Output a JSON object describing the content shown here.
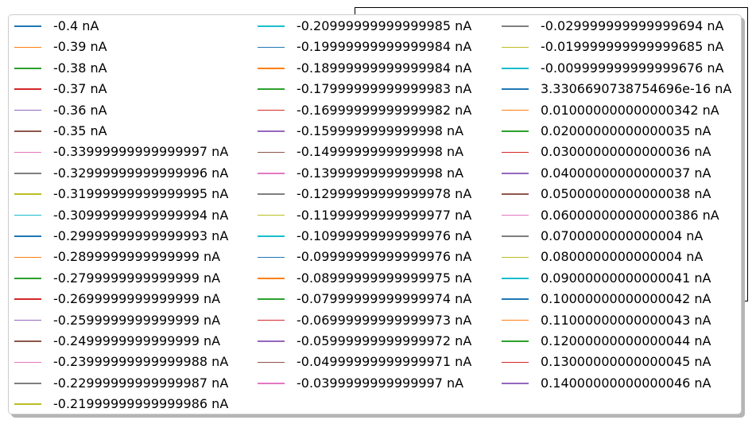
{
  "chart_data": {
    "type": "line",
    "title": "",
    "xlabel": "",
    "ylabel": "",
    "legend_placement": "upper-left",
    "grid": false,
    "series": [
      {
        "name": "-0.4 nA",
        "color": "#1f77b4"
      },
      {
        "name": "-0.39 nA",
        "color": "#ff7f0e"
      },
      {
        "name": "-0.38 nA",
        "color": "#2ca02c"
      },
      {
        "name": "-0.37 nA",
        "color": "#d62728"
      },
      {
        "name": "-0.36 nA",
        "color": "#9467bd"
      },
      {
        "name": "-0.35 nA",
        "color": "#8c564b"
      },
      {
        "name": "-0.33999999999999997 nA",
        "color": "#e377c2"
      },
      {
        "name": "-0.32999999999999996 nA",
        "color": "#7f7f7f"
      },
      {
        "name": "-0.31999999999999995 nA",
        "color": "#bcbd22"
      },
      {
        "name": "-0.30999999999999994 nA",
        "color": "#17becf"
      },
      {
        "name": "-0.29999999999999993 nA",
        "color": "#1f77b4"
      },
      {
        "name": "-0.2899999999999999 nA",
        "color": "#ff7f0e"
      },
      {
        "name": "-0.2799999999999999 nA",
        "color": "#2ca02c"
      },
      {
        "name": "-0.2699999999999999 nA",
        "color": "#d62728"
      },
      {
        "name": "-0.2599999999999999 nA",
        "color": "#9467bd"
      },
      {
        "name": "-0.2499999999999999 nA",
        "color": "#8c564b"
      },
      {
        "name": "-0.23999999999999988 nA",
        "color": "#e377c2"
      },
      {
        "name": "-0.22999999999999987 nA",
        "color": "#7f7f7f"
      },
      {
        "name": "-0.21999999999999986 nA",
        "color": "#bcbd22"
      },
      {
        "name": "-0.20999999999999985 nA",
        "color": "#17becf"
      },
      {
        "name": "-0.19999999999999984 nA",
        "color": "#1f77b4"
      },
      {
        "name": "-0.18999999999999984 nA",
        "color": "#ff7f0e"
      },
      {
        "name": "-0.17999999999999983 nA",
        "color": "#2ca02c"
      },
      {
        "name": "-0.16999999999999982 nA",
        "color": "#d62728"
      },
      {
        "name": "-0.1599999999999998 nA",
        "color": "#9467bd"
      },
      {
        "name": "-0.1499999999999998 nA",
        "color": "#8c564b"
      },
      {
        "name": "-0.1399999999999998 nA",
        "color": "#e377c2"
      },
      {
        "name": "-0.12999999999999978 nA",
        "color": "#7f7f7f"
      },
      {
        "name": "-0.11999999999999977 nA",
        "color": "#bcbd22"
      },
      {
        "name": "-0.10999999999999976 nA",
        "color": "#17becf"
      },
      {
        "name": "-0.09999999999999976 nA",
        "color": "#1f77b4"
      },
      {
        "name": "-0.08999999999999975 nA",
        "color": "#ff7f0e"
      },
      {
        "name": "-0.07999999999999974 nA",
        "color": "#2ca02c"
      },
      {
        "name": "-0.06999999999999973 nA",
        "color": "#d62728"
      },
      {
        "name": "-0.05999999999999972 nA",
        "color": "#9467bd"
      },
      {
        "name": "-0.04999999999999971 nA",
        "color": "#8c564b"
      },
      {
        "name": "-0.0399999999999997 nA",
        "color": "#e377c2"
      },
      {
        "name": "-0.029999999999999694 nA",
        "color": "#7f7f7f"
      },
      {
        "name": "-0.019999999999999685 nA",
        "color": "#bcbd22"
      },
      {
        "name": "-0.009999999999999676 nA",
        "color": "#17becf"
      },
      {
        "name": "3.3306690738754696e-16 nA",
        "color": "#1f77b4"
      },
      {
        "name": "0.010000000000000342 nA",
        "color": "#ff7f0e"
      },
      {
        "name": "0.02000000000000035 nA",
        "color": "#2ca02c"
      },
      {
        "name": "0.03000000000000036 nA",
        "color": "#d62728"
      },
      {
        "name": "0.04000000000000037 nA",
        "color": "#9467bd"
      },
      {
        "name": "0.05000000000000038 nA",
        "color": "#8c564b"
      },
      {
        "name": "0.060000000000000386 nA",
        "color": "#e377c2"
      },
      {
        "name": "0.0700000000000004 nA",
        "color": "#7f7f7f"
      },
      {
        "name": "0.0800000000000004 nA",
        "color": "#bcbd22"
      },
      {
        "name": "0.09000000000000041 nA",
        "color": "#17becf"
      },
      {
        "name": "0.10000000000000042 nA",
        "color": "#1f77b4"
      },
      {
        "name": "0.11000000000000043 nA",
        "color": "#ff7f0e"
      },
      {
        "name": "0.12000000000000044 nA",
        "color": "#2ca02c"
      },
      {
        "name": "0.13000000000000045 nA",
        "color": "#d62728"
      },
      {
        "name": "0.14000000000000046 nA",
        "color": "#9467bd"
      }
    ]
  }
}
